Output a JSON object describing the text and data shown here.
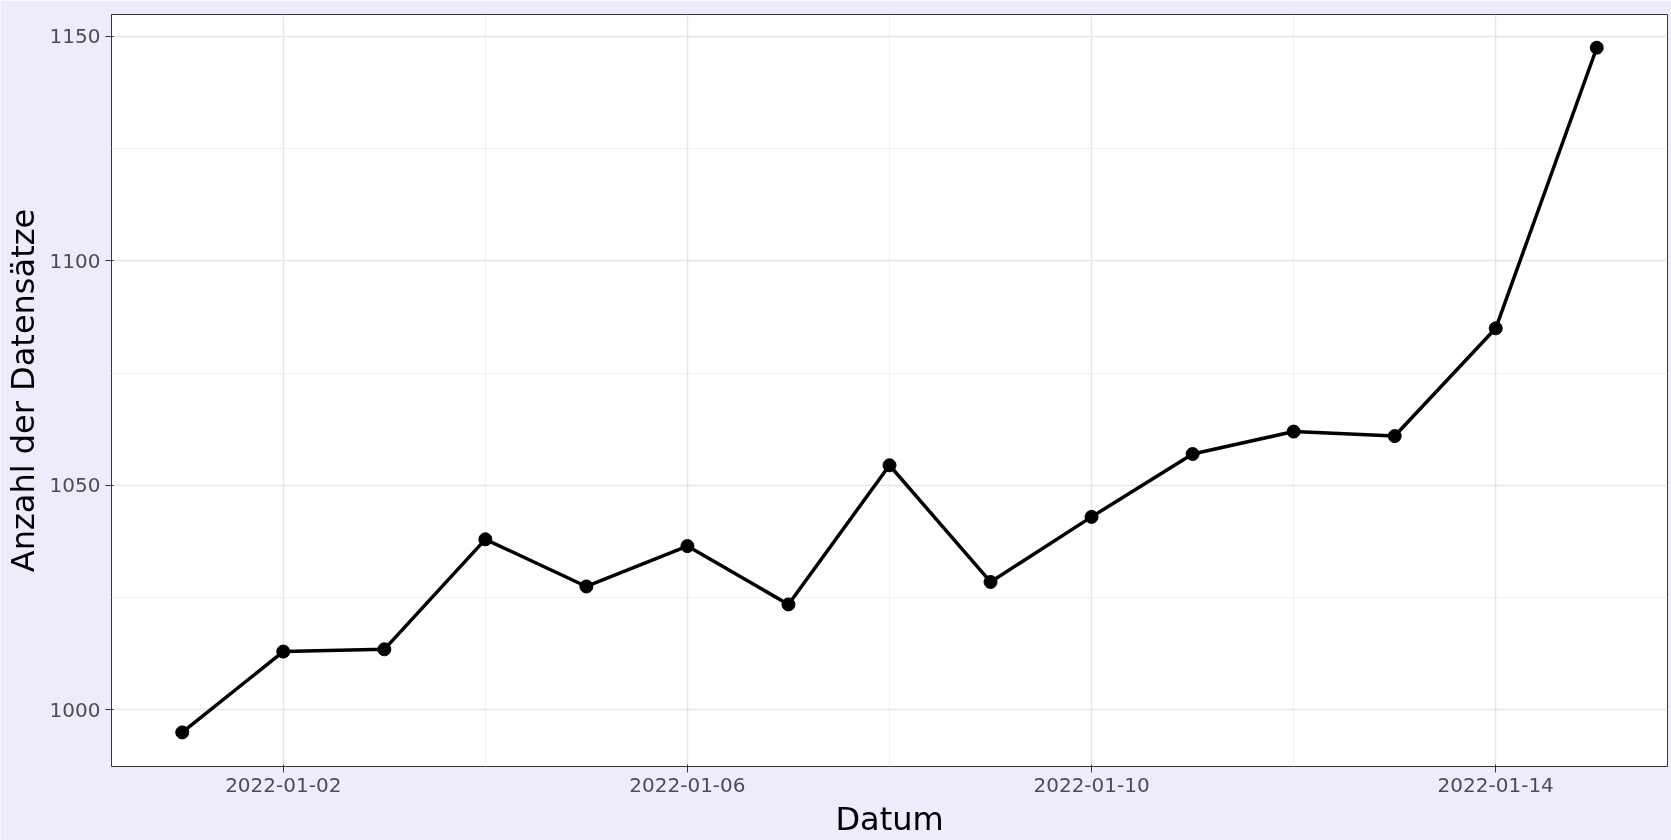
{
  "chart_data": {
    "type": "line",
    "xlabel": "Datum",
    "ylabel": "Anzahl der Datensätze",
    "x": [
      "2022-01-01",
      "2022-01-02",
      "2022-01-03",
      "2022-01-04",
      "2022-01-05",
      "2022-01-06",
      "2022-01-07",
      "2022-01-08",
      "2022-01-09",
      "2022-01-10",
      "2022-01-11",
      "2022-01-12",
      "2022-01-13",
      "2022-01-14",
      "2022-01-15"
    ],
    "series": [
      {
        "color": "#000000",
        "values": [
          995,
          1013,
          1013.5,
          1038,
          1027.5,
          1036.5,
          1023.5,
          1054.5,
          1028.5,
          1043,
          1057,
          1062,
          1061,
          1085,
          1147.5
        ]
      }
    ],
    "xlim": [
      "2021-12-31T07:12",
      "2022-01-15T16:48"
    ],
    "xticks": [
      "2022-01-02",
      "2022-01-06",
      "2022-01-10",
      "2022-01-14"
    ],
    "ylim": [
      987.4,
      1154.9
    ],
    "yticks": [
      1000,
      1050,
      1100,
      1150
    ],
    "grid": true,
    "marker": "circle",
    "line_style": "solid"
  }
}
